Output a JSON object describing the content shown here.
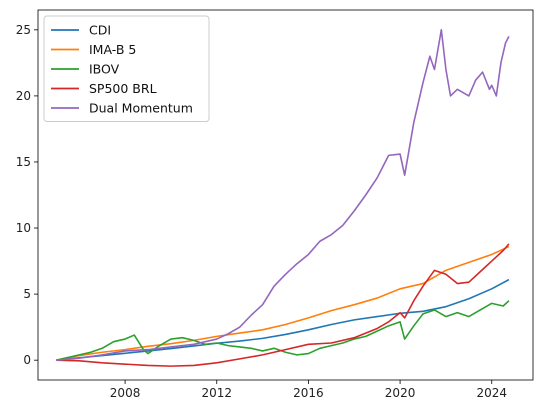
{
  "chart_data": {
    "type": "line",
    "title": "",
    "xlabel": "",
    "ylabel": "",
    "xlim": [
      2004.2,
      2025.8
    ],
    "ylim": [
      -1.5,
      26.5
    ],
    "x_ticks": [
      2008,
      2012,
      2016,
      2020,
      2024
    ],
    "y_ticks": [
      0,
      5,
      10,
      15,
      20,
      25
    ],
    "grid": false,
    "legend": "upper left",
    "series": [
      {
        "name": "CDI",
        "color": "#1f77b4",
        "points": [
          [
            2005.0,
            0.0
          ],
          [
            2006.0,
            0.18
          ],
          [
            2007.0,
            0.35
          ],
          [
            2008.0,
            0.52
          ],
          [
            2009.0,
            0.7
          ],
          [
            2010.0,
            0.88
          ],
          [
            2011.0,
            1.08
          ],
          [
            2012.0,
            1.28
          ],
          [
            2013.0,
            1.45
          ],
          [
            2014.0,
            1.65
          ],
          [
            2015.0,
            1.95
          ],
          [
            2016.0,
            2.3
          ],
          [
            2017.0,
            2.7
          ],
          [
            2018.0,
            3.05
          ],
          [
            2019.0,
            3.3
          ],
          [
            2020.0,
            3.55
          ],
          [
            2021.0,
            3.7
          ],
          [
            2022.0,
            4.05
          ],
          [
            2023.0,
            4.65
          ],
          [
            2024.0,
            5.4
          ],
          [
            2024.75,
            6.1
          ]
        ]
      },
      {
        "name": "IMA-B 5",
        "color": "#ff7f0e",
        "points": [
          [
            2005.0,
            0.0
          ],
          [
            2006.0,
            0.35
          ],
          [
            2007.0,
            0.6
          ],
          [
            2008.0,
            0.8
          ],
          [
            2009.0,
            1.05
          ],
          [
            2010.0,
            1.25
          ],
          [
            2011.0,
            1.5
          ],
          [
            2012.0,
            1.8
          ],
          [
            2013.0,
            2.05
          ],
          [
            2014.0,
            2.3
          ],
          [
            2015.0,
            2.7
          ],
          [
            2016.0,
            3.2
          ],
          [
            2017.0,
            3.75
          ],
          [
            2018.0,
            4.2
          ],
          [
            2019.0,
            4.7
          ],
          [
            2020.0,
            5.4
          ],
          [
            2021.0,
            5.8
          ],
          [
            2022.0,
            6.8
          ],
          [
            2023.0,
            7.4
          ],
          [
            2024.0,
            8.0
          ],
          [
            2024.75,
            8.6
          ]
        ]
      },
      {
        "name": "IBOV",
        "color": "#2ca02c",
        "points": [
          [
            2005.0,
            0.0
          ],
          [
            2005.5,
            0.2
          ],
          [
            2006.0,
            0.4
          ],
          [
            2006.5,
            0.6
          ],
          [
            2007.0,
            0.9
          ],
          [
            2007.5,
            1.4
          ],
          [
            2008.0,
            1.6
          ],
          [
            2008.4,
            1.9
          ],
          [
            2008.8,
            0.8
          ],
          [
            2009.0,
            0.5
          ],
          [
            2009.5,
            1.1
          ],
          [
            2010.0,
            1.6
          ],
          [
            2010.5,
            1.7
          ],
          [
            2011.0,
            1.5
          ],
          [
            2011.5,
            1.2
          ],
          [
            2012.0,
            1.3
          ],
          [
            2012.5,
            1.1
          ],
          [
            2013.0,
            1.0
          ],
          [
            2013.5,
            0.9
          ],
          [
            2014.0,
            0.7
          ],
          [
            2014.5,
            0.9
          ],
          [
            2015.0,
            0.6
          ],
          [
            2015.5,
            0.4
          ],
          [
            2016.0,
            0.5
          ],
          [
            2016.5,
            0.9
          ],
          [
            2017.0,
            1.1
          ],
          [
            2017.5,
            1.3
          ],
          [
            2018.0,
            1.6
          ],
          [
            2018.5,
            1.8
          ],
          [
            2019.0,
            2.2
          ],
          [
            2019.5,
            2.6
          ],
          [
            2020.0,
            2.9
          ],
          [
            2020.2,
            1.6
          ],
          [
            2020.6,
            2.6
          ],
          [
            2021.0,
            3.5
          ],
          [
            2021.5,
            3.8
          ],
          [
            2022.0,
            3.3
          ],
          [
            2022.5,
            3.6
          ],
          [
            2023.0,
            3.3
          ],
          [
            2023.5,
            3.8
          ],
          [
            2024.0,
            4.3
          ],
          [
            2024.5,
            4.1
          ],
          [
            2024.75,
            4.5
          ]
        ]
      },
      {
        "name": "SP500 BRL",
        "color": "#d62728",
        "points": [
          [
            2005.0,
            0.0
          ],
          [
            2006.0,
            -0.05
          ],
          [
            2007.0,
            -0.2
          ],
          [
            2008.0,
            -0.3
          ],
          [
            2009.0,
            -0.4
          ],
          [
            2010.0,
            -0.45
          ],
          [
            2011.0,
            -0.4
          ],
          [
            2012.0,
            -0.2
          ],
          [
            2013.0,
            0.1
          ],
          [
            2014.0,
            0.4
          ],
          [
            2015.0,
            0.8
          ],
          [
            2016.0,
            1.2
          ],
          [
            2017.0,
            1.3
          ],
          [
            2018.0,
            1.7
          ],
          [
            2019.0,
            2.4
          ],
          [
            2019.5,
            2.9
          ],
          [
            2020.0,
            3.6
          ],
          [
            2020.2,
            3.2
          ],
          [
            2020.6,
            4.5
          ],
          [
            2021.0,
            5.6
          ],
          [
            2021.5,
            6.8
          ],
          [
            2022.0,
            6.5
          ],
          [
            2022.5,
            5.8
          ],
          [
            2023.0,
            5.9
          ],
          [
            2023.5,
            6.7
          ],
          [
            2024.0,
            7.5
          ],
          [
            2024.5,
            8.3
          ],
          [
            2024.75,
            8.8
          ]
        ]
      },
      {
        "name": "Dual Momentum",
        "color": "#9467bd",
        "points": [
          [
            2005.0,
            0.0
          ],
          [
            2006.0,
            0.15
          ],
          [
            2007.0,
            0.4
          ],
          [
            2008.0,
            0.7
          ],
          [
            2009.0,
            0.8
          ],
          [
            2010.0,
            1.0
          ],
          [
            2011.0,
            1.2
          ],
          [
            2012.0,
            1.6
          ],
          [
            2012.5,
            2.0
          ],
          [
            2013.0,
            2.5
          ],
          [
            2013.5,
            3.4
          ],
          [
            2014.0,
            4.2
          ],
          [
            2014.5,
            5.6
          ],
          [
            2015.0,
            6.5
          ],
          [
            2015.5,
            7.3
          ],
          [
            2016.0,
            8.0
          ],
          [
            2016.5,
            9.0
          ],
          [
            2017.0,
            9.5
          ],
          [
            2017.5,
            10.2
          ],
          [
            2018.0,
            11.3
          ],
          [
            2018.5,
            12.5
          ],
          [
            2019.0,
            13.8
          ],
          [
            2019.5,
            15.5
          ],
          [
            2020.0,
            15.6
          ],
          [
            2020.2,
            14.0
          ],
          [
            2020.6,
            18.0
          ],
          [
            2021.0,
            21.0
          ],
          [
            2021.3,
            23.0
          ],
          [
            2021.5,
            22.0
          ],
          [
            2021.8,
            25.0
          ],
          [
            2022.0,
            22.0
          ],
          [
            2022.2,
            20.0
          ],
          [
            2022.5,
            20.5
          ],
          [
            2023.0,
            20.0
          ],
          [
            2023.3,
            21.2
          ],
          [
            2023.6,
            21.8
          ],
          [
            2023.9,
            20.5
          ],
          [
            2024.0,
            20.8
          ],
          [
            2024.2,
            20.0
          ],
          [
            2024.4,
            22.5
          ],
          [
            2024.6,
            24.0
          ],
          [
            2024.75,
            24.5
          ]
        ]
      }
    ]
  }
}
